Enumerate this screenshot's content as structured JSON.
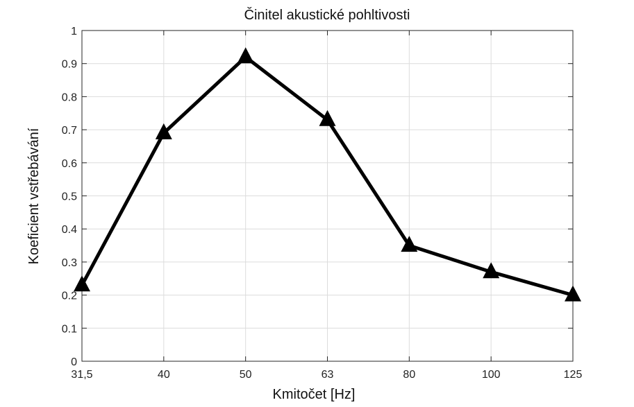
{
  "chart_data": {
    "type": "line",
    "title": "Činitel akustické pohltivosti",
    "xlabel": "Kmitočet [Hz]",
    "ylabel": "Koeficient vstřebávání",
    "categories": [
      "31,5",
      "40",
      "50",
      "63",
      "80",
      "100",
      "125"
    ],
    "series": [
      {
        "values": [
          0.23,
          0.69,
          0.92,
          0.73,
          0.35,
          0.27,
          0.2
        ],
        "color": "#000000",
        "marker": "triangle"
      }
    ],
    "ylim": [
      0,
      1
    ],
    "yticks": [
      0,
      0.1,
      0.2,
      0.3,
      0.4,
      0.5,
      0.6,
      0.7,
      0.8,
      0.9,
      1
    ],
    "ytick_labels": [
      "0",
      "0.1",
      "0.2",
      "0.3",
      "0.4",
      "0.5",
      "0.6",
      "0.7",
      "0.8",
      "0.9",
      "1"
    ],
    "grid": true,
    "legend": "none"
  }
}
